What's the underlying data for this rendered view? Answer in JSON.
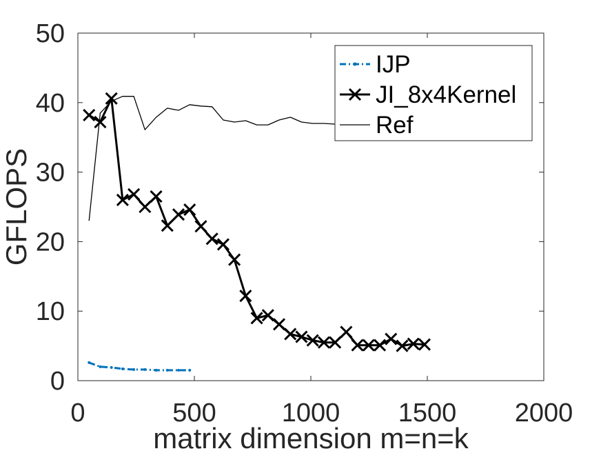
{
  "chart_data": {
    "type": "line",
    "title": "",
    "xlabel": "matrix dimension m=n=k",
    "ylabel": "GFLOPS",
    "xlim": [
      0,
      2000
    ],
    "ylim": [
      0,
      50
    ],
    "xticks": [
      0,
      500,
      1000,
      1500,
      2000
    ],
    "yticks": [
      0,
      10,
      20,
      30,
      40,
      50
    ],
    "grid": false,
    "legend_position": "top-right",
    "series": [
      {
        "name": "IJP",
        "color": "#0072BD",
        "style": "dash-dot",
        "marker": "dot",
        "x": [
          48,
          96,
          144,
          192,
          240,
          288,
          336,
          384,
          432,
          480
        ],
        "y": [
          2.6,
          2.0,
          1.9,
          1.7,
          1.6,
          1.6,
          1.5,
          1.5,
          1.5,
          1.5
        ]
      },
      {
        "name": "JI_8x4Kernel",
        "color": "#000000",
        "style": "solid",
        "marker": "x",
        "x": [
          48,
          96,
          144,
          192,
          240,
          288,
          336,
          384,
          432,
          480,
          528,
          576,
          624,
          672,
          720,
          768,
          816,
          864,
          912,
          960,
          1008,
          1056,
          1104,
          1152,
          1200,
          1248,
          1296,
          1344,
          1392,
          1440,
          1488
        ],
        "y": [
          38.2,
          37.2,
          40.6,
          26.0,
          26.8,
          25.0,
          26.5,
          22.3,
          23.9,
          24.6,
          22.2,
          20.4,
          19.6,
          17.4,
          12.2,
          9.0,
          9.4,
          8.1,
          6.7,
          6.3,
          5.8,
          5.5,
          5.5,
          7.0,
          5.1,
          5.1,
          5.1,
          6.0,
          5.0,
          5.3,
          5.2
        ]
      },
      {
        "name": "Ref",
        "color": "#000000",
        "style": "solid",
        "marker": "none",
        "x": [
          48,
          96,
          144,
          192,
          240,
          288,
          336,
          384,
          432,
          480,
          528,
          576,
          624,
          672,
          720,
          768,
          816,
          864,
          912,
          960,
          1008,
          1056,
          1104,
          1152,
          1200,
          1248,
          1296,
          1344,
          1392,
          1440,
          1488
        ],
        "y": [
          23.0,
          38.5,
          40.2,
          40.9,
          40.9,
          36.1,
          37.9,
          39.2,
          38.9,
          39.7,
          39.5,
          39.4,
          37.5,
          37.2,
          37.4,
          36.8,
          36.8,
          37.5,
          37.9,
          37.2,
          37.0,
          37.0,
          36.9,
          36.8,
          36.8,
          36.7,
          36.8,
          36.7,
          36.6,
          36.7,
          36.6
        ]
      }
    ]
  }
}
